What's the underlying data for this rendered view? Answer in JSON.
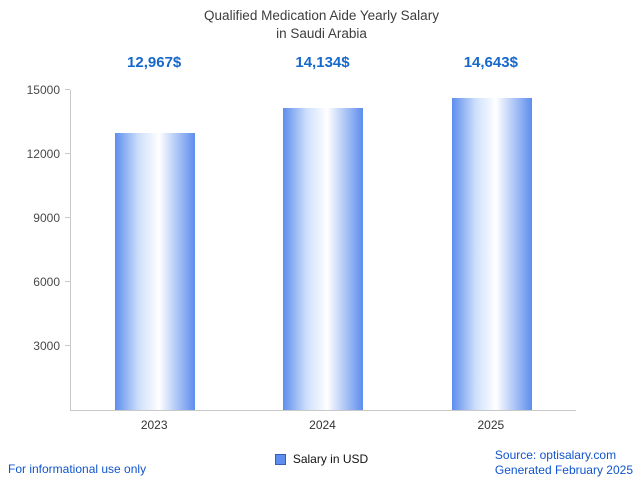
{
  "chart_data": {
    "type": "bar",
    "title_line1": "Qualified Medication Aide Yearly Salary",
    "title_line2": "in Saudi Arabia",
    "categories": [
      "2023",
      "2024",
      "2025"
    ],
    "values": [
      12967,
      14134,
      14643
    ],
    "value_labels": [
      "12,967$",
      "14,134$",
      "14,643$"
    ],
    "yticks": [
      "3000",
      "6000",
      "9000",
      "12000",
      "15000"
    ],
    "ylim": [
      0,
      15000
    ],
    "ylabel": "",
    "xlabel": "",
    "legend_label": "Salary in USD",
    "legend_position": "bottom-center",
    "grid": false,
    "colors": {
      "bar_accent": "#5d8ded",
      "value_label_text": "#1668cb",
      "footer_link_text": "#1155cc"
    }
  },
  "footer": {
    "left_note": "For informational use only",
    "source": "Source: optisalary.com",
    "generated": "Generated February 2025"
  }
}
